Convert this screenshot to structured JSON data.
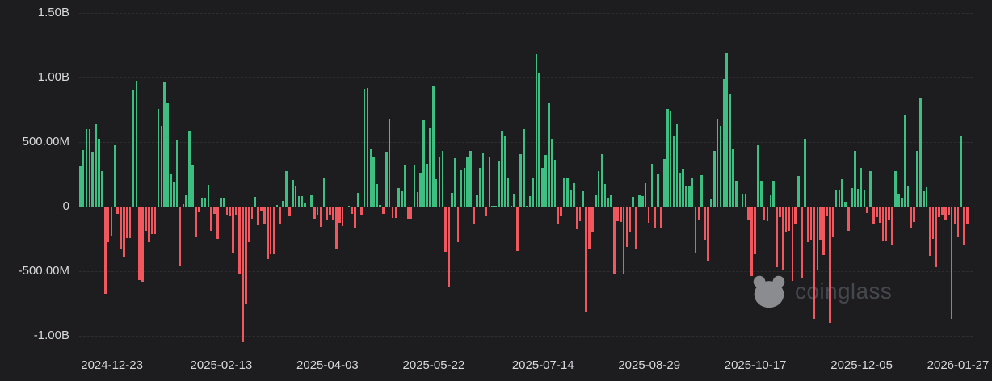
{
  "watermark": {
    "brand": "coinglass",
    "icon": "coinglass-bear-icon"
  },
  "chart_data": {
    "type": "bar",
    "unit": "USD",
    "value_unit": "millions of USD",
    "frequency": "daily bars (trading days), Dec 2024 to Jan 2026",
    "grid": true,
    "legend": "none",
    "ylim_millions": [
      -1000,
      1500
    ],
    "colors": {
      "positive": "#3fbe81",
      "negative": "#f1575f",
      "background": "#1d1d20",
      "axis_text": "#d8d9db",
      "gridline": "rgba(255,255,255,0.08)",
      "watermark_text": "#46474c",
      "watermark_icon": "#919296"
    },
    "y_ticks": [
      {
        "label": "1.50B",
        "value_millions": 1500
      },
      {
        "label": "1.00B",
        "value_millions": 1000
      },
      {
        "label": "500.00M",
        "value_millions": 500
      },
      {
        "label": "0",
        "value_millions": 0
      },
      {
        "label": "-500.00M",
        "value_millions": -500
      },
      {
        "label": "-1.00B",
        "value_millions": -1000
      }
    ],
    "x_ticks": [
      {
        "label": "2024-12-23",
        "index": 10
      },
      {
        "label": "2025-02-13",
        "index": 45
      },
      {
        "label": "2025-04-03",
        "index": 79
      },
      {
        "label": "2025-05-22",
        "index": 113
      },
      {
        "label": "2025-07-14",
        "index": 148
      },
      {
        "label": "2025-08-29",
        "index": 182
      },
      {
        "label": "2025-10-17",
        "index": 216
      },
      {
        "label": "2025-12-05",
        "index": 250
      },
      {
        "label": "2026-01-27",
        "index": 284
      }
    ],
    "values_millions": [
      314,
      438,
      599,
      598,
      424,
      636,
      522,
      275,
      -672,
      -277,
      -226,
      475,
      -58,
      -326,
      -395,
      -242,
      -243,
      908,
      978,
      -568,
      -583,
      -185,
      -275,
      -210,
      -210,
      755,
      626,
      960,
      802,
      249,
      188,
      517,
      -457,
      18,
      92,
      588,
      318,
      -235,
      -42,
      66,
      66,
      171,
      -186,
      -57,
      -251,
      66,
      70,
      -60,
      -71,
      -364,
      -62,
      -517,
      -1050,
      -754,
      -276,
      -94,
      74,
      -143,
      -38,
      -134,
      -409,
      -370,
      -371,
      13,
      -135,
      41,
      275,
      -75,
      209,
      165,
      83,
      84,
      27,
      -2,
      89,
      -94,
      -60,
      -158,
      220,
      -100,
      -65,
      -103,
      -326,
      -127,
      -150,
      -1,
      2,
      -59,
      -170,
      108,
      -64,
      912,
      917,
      442,
      380,
      173,
      10,
      -56,
      422,
      675,
      -85,
      -85,
      142,
      117,
      321,
      -91,
      -96,
      320,
      115,
      260,
      667,
      329,
      609,
      934,
      211,
      385,
      433,
      -347,
      -617,
      105,
      375,
      -278,
      281,
      301,
      386,
      431,
      -131,
      86,
      301,
      412,
      -75,
      389,
      1,
      6,
      350,
      588,
      547,
      226,
      2,
      102,
      -342,
      408,
      602,
      0,
      80,
      218,
      1180,
      1030,
      297,
      403,
      800,
      523,
      363,
      -131,
      -68,
      226,
      227,
      131,
      180,
      -172,
      -113,
      116,
      -812,
      -323,
      -196,
      91,
      277,
      404,
      178,
      66,
      87,
      -523,
      -114,
      -121,
      -523,
      -311,
      -194,
      72,
      -327,
      88,
      81,
      179,
      -126,
      332,
      -160,
      250,
      -160,
      368,
      757,
      741,
      553,
      642,
      260,
      292,
      163,
      163,
      222,
      -363,
      -103,
      241,
      -258,
      -418,
      61,
      430,
      676,
      627,
      985,
      1190,
      876,
      441,
      198,
      -5,
      103,
      103,
      -104,
      -536,
      -366,
      477,
      203,
      -101,
      -110,
      90,
      202,
      -470,
      -80,
      -488,
      -191,
      -187,
      -577,
      -137,
      240,
      -558,
      524,
      -278,
      -255,
      -867,
      -492,
      -254,
      -372,
      -75,
      -903,
      -239,
      129,
      130,
      213,
      39,
      -187,
      145,
      429,
      139,
      300,
      132,
      -50,
      275,
      -140,
      -80,
      -122,
      -268,
      -270,
      -98,
      -300,
      275,
      100,
      70,
      710,
      155,
      -165,
      -120,
      430,
      835,
      120,
      150,
      -380,
      -250,
      -470,
      -80,
      -60,
      -100,
      -60,
      -870,
      -140,
      -230,
      550,
      -300,
      -130
    ]
  }
}
